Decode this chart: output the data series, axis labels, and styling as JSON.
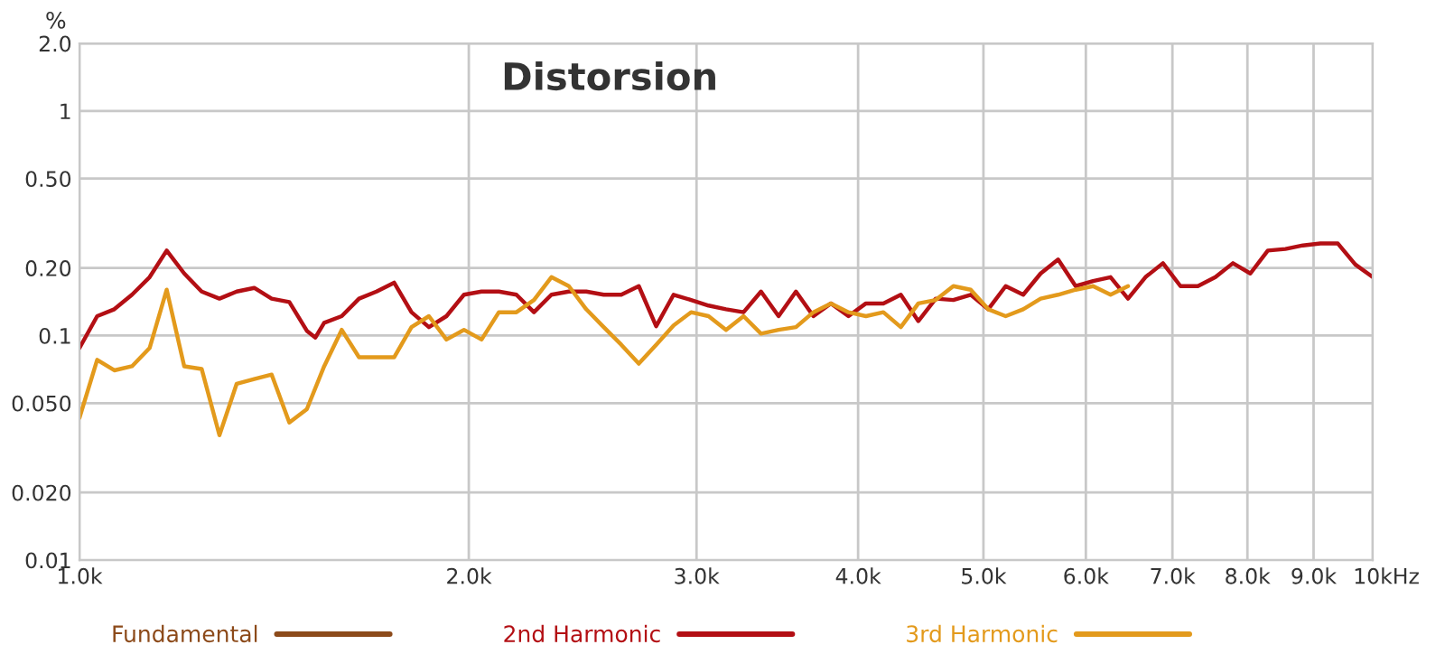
{
  "chart_data": {
    "type": "line",
    "title": "Distorsion",
    "ylabel": "%",
    "log": "xy",
    "grid": true,
    "legend": "bottom",
    "line_style": "solid",
    "marker": "none",
    "xlim": [
      1000,
      10000
    ],
    "xticks": [
      {
        "value": 1000,
        "label": "1.0k"
      },
      {
        "value": 2000,
        "label": "2.0k"
      },
      {
        "value": 3000,
        "label": "3.0k"
      },
      {
        "value": 4000,
        "label": "4.0k"
      },
      {
        "value": 5000,
        "label": "5.0k"
      },
      {
        "value": 6000,
        "label": "6.0k"
      },
      {
        "value": 7000,
        "label": "7.0k"
      },
      {
        "value": 8000,
        "label": "8.0k"
      },
      {
        "value": 9000,
        "label": "9.0k"
      },
      {
        "value": 10000,
        "label": "10k"
      }
    ],
    "xlabel": "Hz",
    "ylim": [
      0.01,
      2.0
    ],
    "yticks": [
      {
        "value": 0.01,
        "label": "0.01"
      },
      {
        "value": 0.02,
        "label": "0.020"
      },
      {
        "value": 0.05,
        "label": "0.050"
      },
      {
        "value": 0.1,
        "label": "0.1"
      },
      {
        "value": 0.2,
        "label": "0.20"
      },
      {
        "value": 0.5,
        "label": "0.50"
      },
      {
        "value": 1,
        "label": "1"
      },
      {
        "value": 2.0,
        "label": "2.0"
      }
    ],
    "series": [
      {
        "name": "Fundamental",
        "color": "#8c4a1a"
      },
      {
        "name": "2nd Harmonic",
        "color": "#b30f14",
        "x": [
          1000,
          1032,
          1064,
          1098,
          1133,
          1168,
          1205,
          1243,
          1283,
          1323,
          1365,
          1408,
          1453,
          1499,
          1522,
          1546,
          1595,
          1645,
          1697,
          1751,
          1806,
          1863,
          1922,
          1983,
          2046,
          2110,
          2177,
          2246,
          2317,
          2390,
          2465,
          2543,
          2624,
          2707,
          2792,
          2880,
          2971,
          3065,
          3162,
          3262,
          3365,
          3472,
          3581,
          3694,
          3811,
          3932,
          4056,
          4184,
          4316,
          4453,
          4593,
          4739,
          4888,
          5043,
          5202,
          5367,
          5536,
          5711,
          5892,
          6078,
          6270,
          6468,
          6672,
          6883,
          7101,
          7325,
          7557,
          7796,
          8042,
          8296,
          8560,
          8830,
          9110,
          9398,
          9695,
          10000
        ],
        "values": [
          0.088,
          0.122,
          0.131,
          0.152,
          0.182,
          0.239,
          0.189,
          0.157,
          0.146,
          0.157,
          0.163,
          0.146,
          0.141,
          0.105,
          0.098,
          0.114,
          0.122,
          0.146,
          0.157,
          0.172,
          0.127,
          0.109,
          0.122,
          0.152,
          0.157,
          0.157,
          0.152,
          0.127,
          0.152,
          0.157,
          0.157,
          0.152,
          0.152,
          0.166,
          0.11,
          0.152,
          0.144,
          0.136,
          0.131,
          0.127,
          0.157,
          0.122,
          0.157,
          0.122,
          0.139,
          0.122,
          0.139,
          0.139,
          0.152,
          0.116,
          0.146,
          0.144,
          0.152,
          0.131,
          0.166,
          0.152,
          0.189,
          0.218,
          0.166,
          0.175,
          0.182,
          0.146,
          0.182,
          0.21,
          0.166,
          0.166,
          0.182,
          0.21,
          0.189,
          0.239,
          0.243,
          0.252,
          0.257,
          0.257,
          0.207,
          0.182
        ]
      },
      {
        "name": "3rd Harmonic",
        "color": "#e39a1c",
        "x": [
          1000,
          1032,
          1064,
          1098,
          1133,
          1168,
          1205,
          1243,
          1283,
          1323,
          1365,
          1408,
          1453,
          1499,
          1546,
          1595,
          1645,
          1697,
          1751,
          1806,
          1863,
          1922,
          1983,
          2046,
          2110,
          2177,
          2246,
          2317,
          2390,
          2465,
          2543,
          2624,
          2707,
          2792,
          2880,
          2971,
          3065,
          3162,
          3262,
          3365,
          3472,
          3581,
          3694,
          3811,
          3932,
          4056,
          4184,
          4316,
          4453,
          4593,
          4739,
          4888,
          5043,
          5202,
          5367,
          5536,
          5711,
          5892,
          6078,
          6270,
          6468
        ],
        "values": [
          0.043,
          0.078,
          0.07,
          0.073,
          0.088,
          0.16,
          0.073,
          0.071,
          0.036,
          0.061,
          0.064,
          0.067,
          0.041,
          0.047,
          0.073,
          0.106,
          0.08,
          0.08,
          0.08,
          0.109,
          0.122,
          0.096,
          0.106,
          0.096,
          0.127,
          0.127,
          0.144,
          0.182,
          0.166,
          0.131,
          0.109,
          0.091,
          0.075,
          0.091,
          0.111,
          0.127,
          0.122,
          0.106,
          0.122,
          0.102,
          0.106,
          0.109,
          0.127,
          0.139,
          0.127,
          0.122,
          0.127,
          0.109,
          0.139,
          0.144,
          0.166,
          0.16,
          0.131,
          0.122,
          0.131,
          0.146,
          0.152,
          0.16,
          0.166,
          0.152,
          0.166
        ]
      }
    ]
  }
}
